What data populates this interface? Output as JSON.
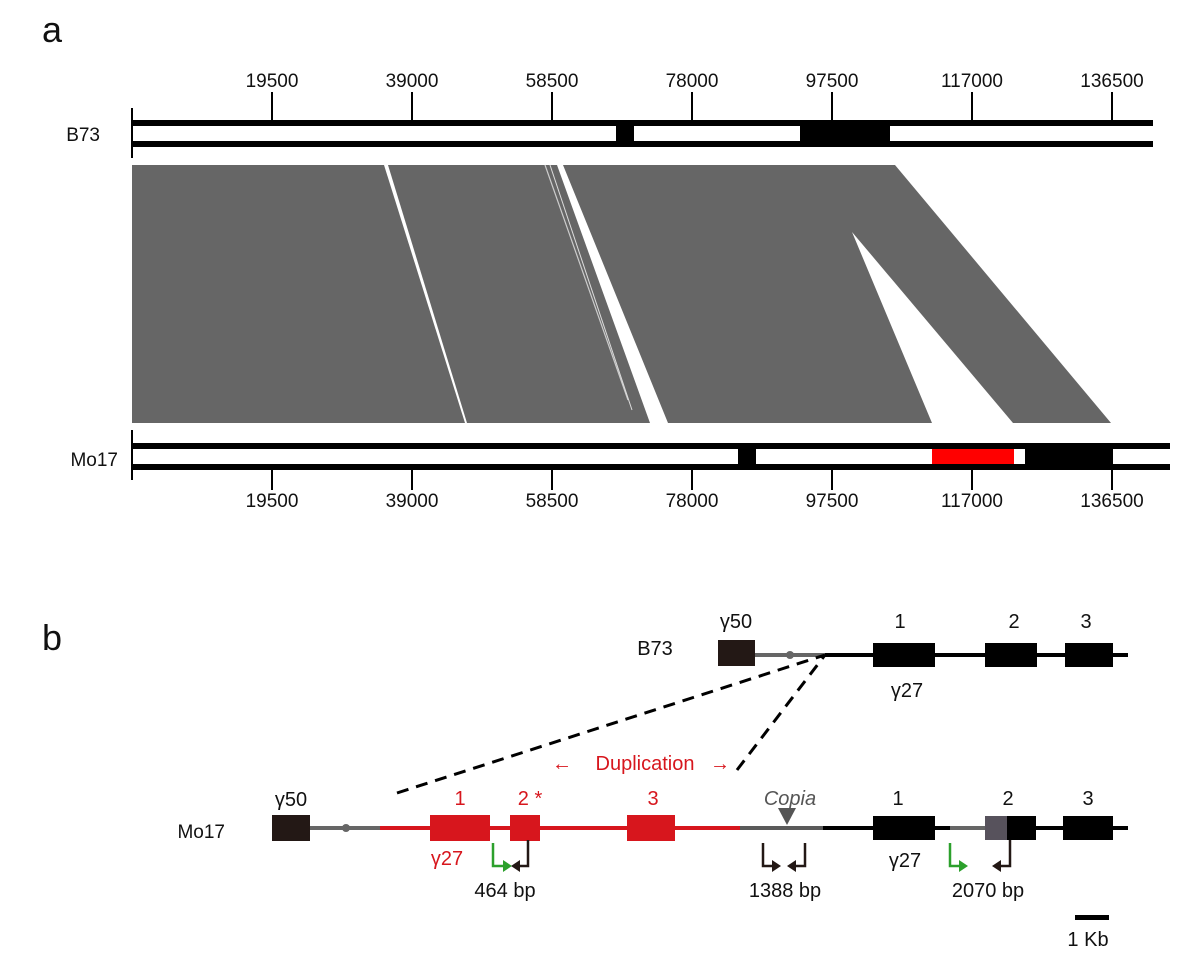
{
  "panel_a": {
    "label": "a",
    "top_track": {
      "name": "B73",
      "ticks": [
        "19500",
        "39000",
        "58500",
        "78000",
        "97500",
        "117000",
        "136500"
      ]
    },
    "bottom_track": {
      "name": "Mo17",
      "ticks": [
        "19500",
        "39000",
        "58500",
        "78000",
        "97500",
        "117000",
        "136500"
      ]
    },
    "colors": {
      "alignment": "#666666",
      "block": "#000000",
      "highlight": "#ff0000"
    }
  },
  "panel_b": {
    "label": "b",
    "b73": {
      "name": "B73",
      "upstream_gene": "γ50",
      "gene": "γ27",
      "exons": [
        "1",
        "2",
        "3"
      ]
    },
    "mo17": {
      "name": "Mo17",
      "upstream_gene": "γ50",
      "dup_gene": "γ27",
      "dup_exons": [
        "1",
        "2 *",
        "3"
      ],
      "gene": "γ27",
      "exons": [
        "1",
        "2",
        "3"
      ],
      "te": "Copia",
      "duplication": "Duplication",
      "dup_arrow_left": "←",
      "dup_arrow_right": "→",
      "products": [
        "464 bp",
        "1388 bp",
        "2070 bp"
      ]
    },
    "scale": "1 Kb",
    "colors": {
      "duplication": "#d7161d",
      "primer_green": "#2ca02c",
      "te": "#5a5a5a"
    }
  }
}
